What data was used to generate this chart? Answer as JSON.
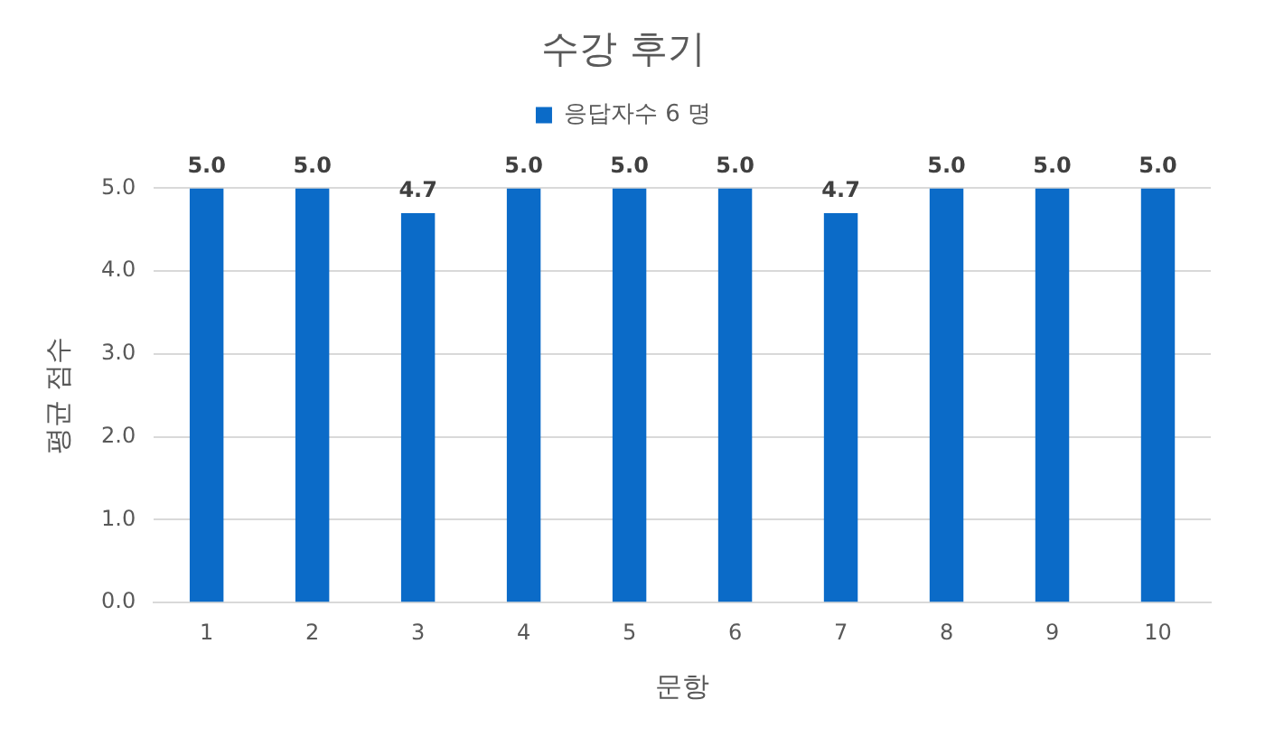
{
  "chart_data": {
    "type": "bar",
    "title": "수강 후기",
    "xlabel": "문항",
    "ylabel": "평균 점수",
    "categories": [
      "1",
      "2",
      "3",
      "4",
      "5",
      "6",
      "7",
      "8",
      "9",
      "10"
    ],
    "series": [
      {
        "name": "응답자수 6 명",
        "color": "#0b6bc8",
        "values": [
          5,
          5,
          4.7,
          5,
          5,
          5,
          4.7,
          5,
          5,
          5
        ],
        "value_labels": [
          "5.0",
          "5.0",
          "4.7",
          "5.0",
          "5.0",
          "5.0",
          "4.7",
          "5.0",
          "5.0",
          "5.0"
        ]
      }
    ],
    "ylim": [
      0,
      5
    ],
    "yticks": [
      {
        "value": 0,
        "label": "0.0"
      },
      {
        "value": 1,
        "label": "1.0"
      },
      {
        "value": 2,
        "label": "2.0"
      },
      {
        "value": 3,
        "label": "3.0"
      },
      {
        "value": 4,
        "label": "4.0"
      },
      {
        "value": 5,
        "label": "5.0"
      }
    ],
    "grid": "y",
    "legend": "top"
  }
}
